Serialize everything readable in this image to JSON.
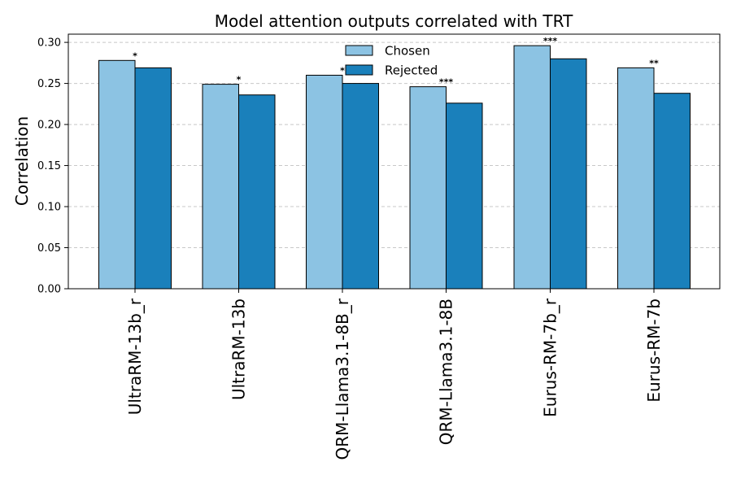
{
  "chart_data": {
    "type": "bar",
    "title": "Model attention outputs correlated with TRT",
    "xlabel": "",
    "ylabel": "Correlation",
    "ylim": [
      0,
      0.31
    ],
    "yticks": [
      "0.00",
      "0.05",
      "0.10",
      "0.15",
      "0.20",
      "0.25",
      "0.30"
    ],
    "grid": "y-dashed",
    "legend_position": "top-center",
    "categories": [
      "UltraRM-13b_r",
      "UltraRM-13b",
      "QRM-Llama3.1-8B_r",
      "QRM-Llama3.1-8B",
      "Eurus-RM-7b_r",
      "Eurus-RM-7b"
    ],
    "series": [
      {
        "name": "Chosen",
        "color": "#8cc3e3",
        "values": [
          0.278,
          0.249,
          0.26,
          0.246,
          0.296,
          0.269
        ]
      },
      {
        "name": "Rejected",
        "color": "#1a80bb",
        "values": [
          0.269,
          0.236,
          0.25,
          0.226,
          0.28,
          0.238
        ]
      }
    ],
    "significance": [
      "*",
      "*",
      "*",
      "***",
      "***",
      "**"
    ]
  }
}
